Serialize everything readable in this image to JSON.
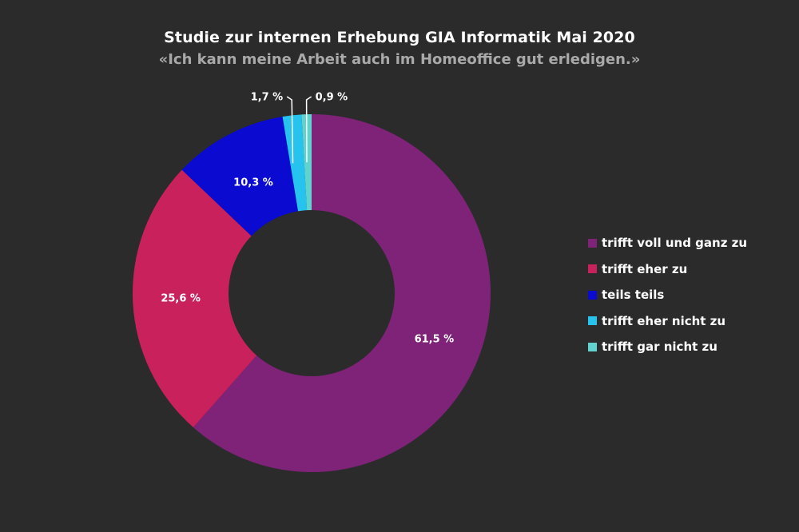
{
  "chart_data": {
    "type": "pie",
    "title": "Studie zur internen Erhebung GIA Informatik Mai 2020",
    "subtitle": "«Ich kann meine Arbeit auch im Homeoffice gut erledigen.»",
    "slices": [
      {
        "label": "trifft voll und ganz zu",
        "value": 61.5,
        "value_label": "61,5 %",
        "color": "#7e2378"
      },
      {
        "label": "trifft eher zu",
        "value": 25.6,
        "value_label": "25,6 %",
        "color": "#c8215c"
      },
      {
        "label": "teils teils",
        "value": 10.3,
        "value_label": "10,3 %",
        "color": "#0a0ad0"
      },
      {
        "label": "trifft eher nicht zu",
        "value": 1.7,
        "value_label": "1,7 %",
        "color": "#27c3ef"
      },
      {
        "label": "trifft gar nicht zu",
        "value": 0.9,
        "value_label": "0,9 %",
        "color": "#62d2cf"
      }
    ],
    "legend_position": "right",
    "donut": true
  }
}
